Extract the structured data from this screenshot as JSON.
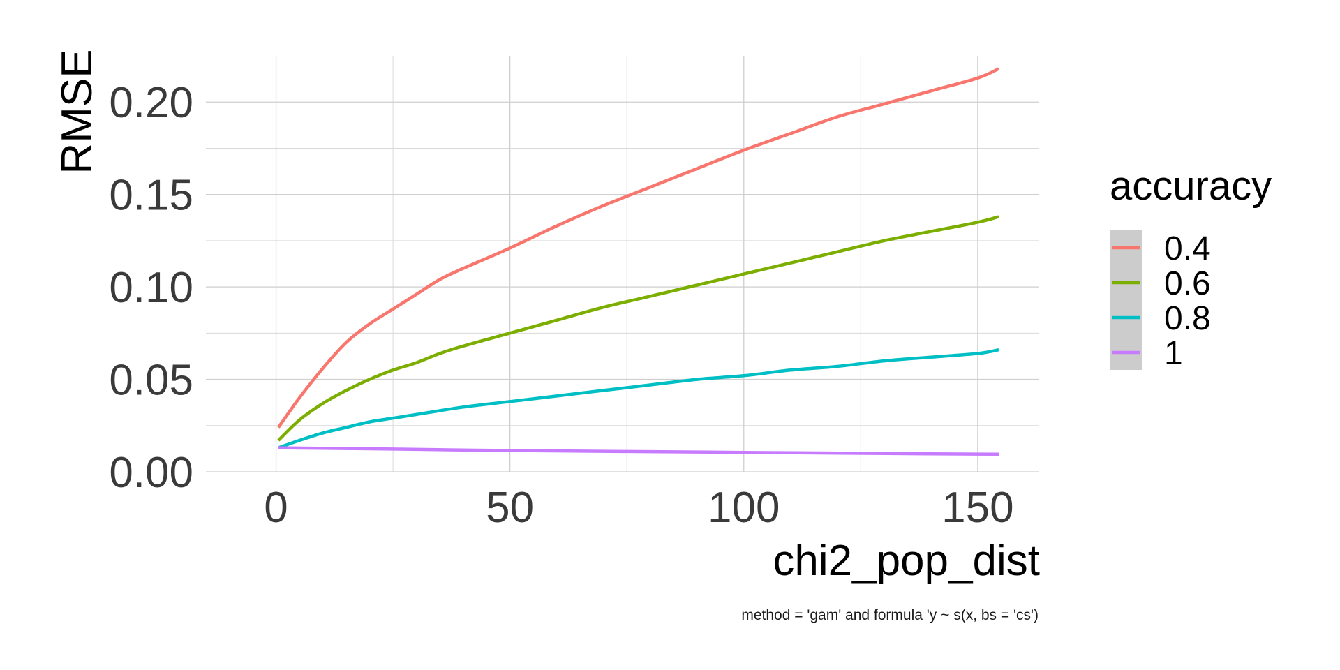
{
  "chart_data": {
    "type": "line",
    "xlabel": "chi2_pop_dist",
    "ylabel": "RMSE",
    "caption": "method = 'gam' and formula 'y ~ s(x, bs = 'cs')",
    "xlim": [
      -15,
      163
    ],
    "ylim": [
      0,
      0.225
    ],
    "x_ticks": [
      0,
      50,
      100,
      150
    ],
    "x_tick_labels": [
      "0",
      "50",
      "100",
      "150"
    ],
    "y_ticks": [
      0.0,
      0.05,
      0.1,
      0.15,
      0.2
    ],
    "y_tick_labels": [
      "0.00",
      "0.05",
      "0.10",
      "0.15",
      "0.20"
    ],
    "x_minor_ticks": [
      25,
      75,
      125
    ],
    "y_minor_ticks": [
      0.025,
      0.075,
      0.125,
      0.175
    ],
    "grid": true,
    "legend": {
      "title": "accuracy",
      "position": "right"
    },
    "series": [
      {
        "name": "0.4",
        "color": "#F8766D",
        "x": [
          0.5,
          5,
          10,
          15,
          20,
          25,
          30,
          35,
          40,
          50,
          60,
          70,
          80,
          90,
          100,
          110,
          120,
          130,
          140,
          150,
          154.5
        ],
        "y": [
          0.024,
          0.04,
          0.056,
          0.07,
          0.08,
          0.088,
          0.096,
          0.104,
          0.11,
          0.121,
          0.133,
          0.144,
          0.154,
          0.164,
          0.174,
          0.183,
          0.192,
          0.199,
          0.206,
          0.213,
          0.218
        ]
      },
      {
        "name": "0.6",
        "color": "#7CAE00",
        "x": [
          0.5,
          5,
          10,
          15,
          20,
          25,
          30,
          35,
          40,
          50,
          60,
          70,
          80,
          90,
          100,
          110,
          120,
          130,
          140,
          150,
          154.5
        ],
        "y": [
          0.017,
          0.028,
          0.037,
          0.044,
          0.05,
          0.055,
          0.059,
          0.064,
          0.068,
          0.075,
          0.082,
          0.089,
          0.095,
          0.101,
          0.107,
          0.113,
          0.119,
          0.125,
          0.13,
          0.135,
          0.138
        ]
      },
      {
        "name": "0.8",
        "color": "#00BFC4",
        "x": [
          0.5,
          5,
          10,
          15,
          20,
          25,
          30,
          40,
          50,
          60,
          70,
          80,
          90,
          100,
          110,
          120,
          130,
          140,
          150,
          154.5
        ],
        "y": [
          0.013,
          0.017,
          0.021,
          0.024,
          0.027,
          0.029,
          0.031,
          0.035,
          0.038,
          0.041,
          0.044,
          0.047,
          0.05,
          0.052,
          0.055,
          0.057,
          0.06,
          0.062,
          0.064,
          0.066
        ]
      },
      {
        "name": "1",
        "color": "#C77CFF",
        "x": [
          0.5,
          25,
          50,
          75,
          100,
          125,
          154.5
        ],
        "y": [
          0.013,
          0.0123,
          0.0115,
          0.011,
          0.0105,
          0.01,
          0.0095
        ]
      }
    ]
  }
}
